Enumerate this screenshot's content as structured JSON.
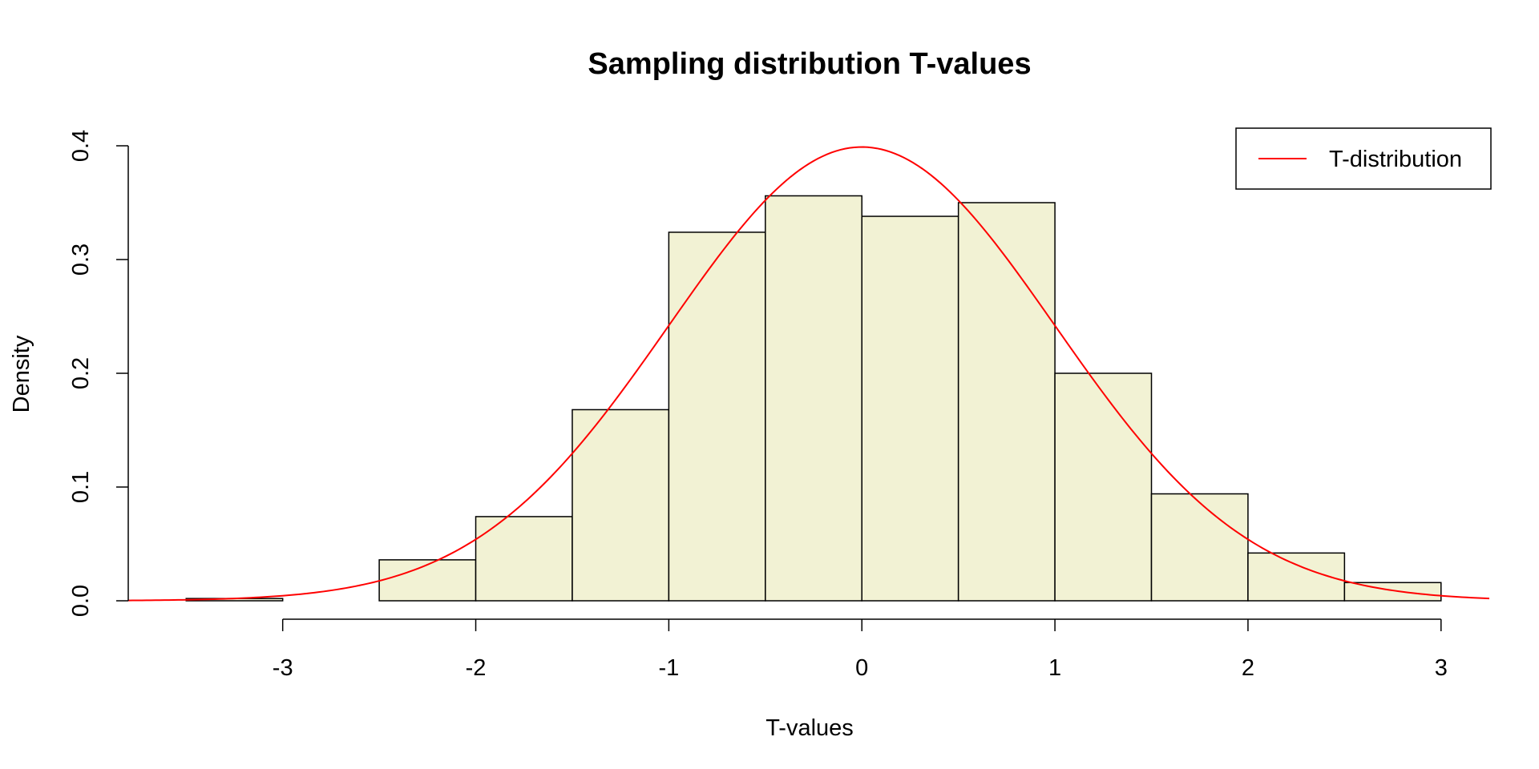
{
  "chart_data": {
    "type": "bar",
    "title": "Sampling distribution T-values",
    "xlabel": "T-values",
    "ylabel": "Density",
    "xlim": [
      -3.8,
      3.25
    ],
    "ylim": [
      0,
      0.4
    ],
    "xticks": [
      -3,
      -2,
      -1,
      0,
      1,
      2,
      3
    ],
    "xtick_labels": [
      "-3",
      "-2",
      "-1",
      "0",
      "1",
      "2",
      "3"
    ],
    "yticks": [
      0,
      0.1,
      0.2,
      0.3,
      0.4
    ],
    "ytick_labels": [
      "0.0",
      "0.1",
      "0.2",
      "0.3",
      "0.4"
    ],
    "grid": false,
    "histogram": {
      "bin_edges": [
        -3.5,
        -3,
        -2.5,
        -2,
        -1.5,
        -1,
        -0.5,
        0,
        0.5,
        1,
        1.5,
        2,
        2.5,
        3
      ],
      "density": [
        0.002,
        0,
        0.036,
        0.074,
        0.168,
        0.324,
        0.356,
        0.338,
        0.35,
        0.2,
        0.094,
        0.042,
        0.016
      ],
      "fill_color": "#f2f2d4",
      "edge_color": "#000000"
    },
    "series": [
      {
        "name": "T-distribution",
        "type": "line",
        "color": "#ff0000",
        "distribution": "t",
        "x_range": [
          -3.8,
          3.25
        ]
      }
    ],
    "legend": {
      "position": "top-right",
      "entries": [
        {
          "label": "T-distribution",
          "color": "#ff0000"
        }
      ]
    }
  }
}
